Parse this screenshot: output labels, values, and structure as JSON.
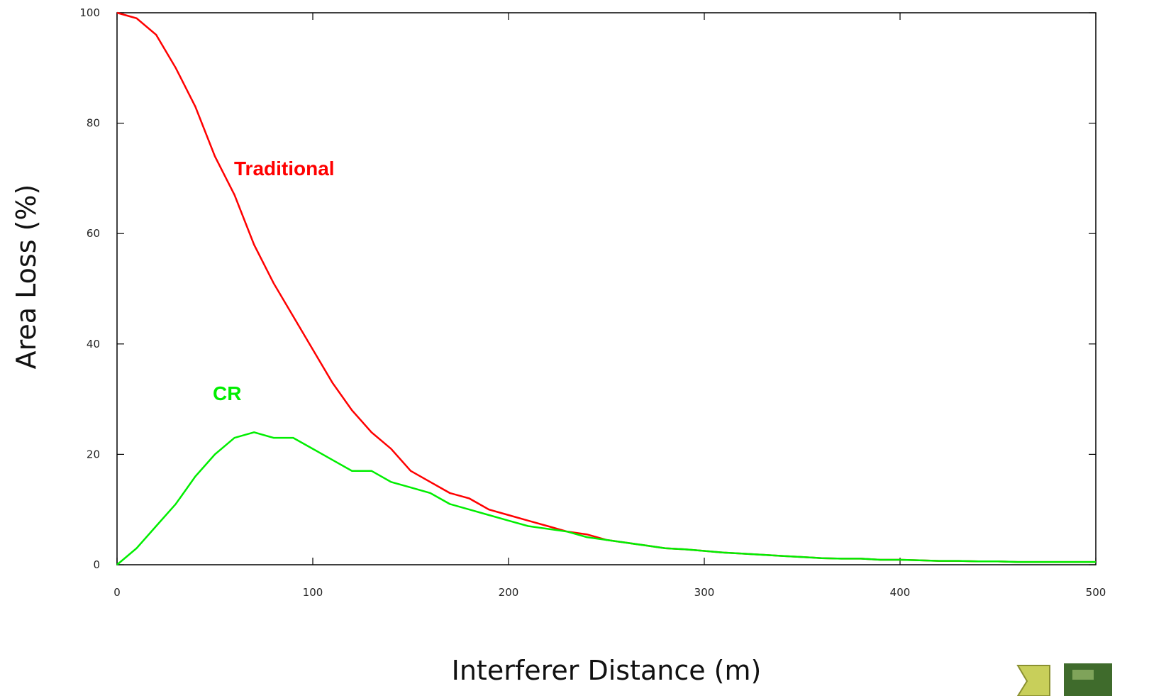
{
  "chart_data": {
    "type": "line",
    "xlabel": "Interferer Distance (m)",
    "ylabel": "Area Loss (%)",
    "xlim": [
      0,
      500
    ],
    "ylim": [
      0,
      100
    ],
    "xticks": [
      0,
      100,
      200,
      300,
      400,
      500
    ],
    "yticks": [
      0,
      20,
      40,
      60,
      80,
      100
    ],
    "x": [
      0,
      10,
      20,
      30,
      40,
      50,
      60,
      70,
      80,
      90,
      100,
      110,
      120,
      130,
      140,
      150,
      160,
      170,
      180,
      190,
      200,
      210,
      220,
      230,
      240,
      250,
      260,
      270,
      280,
      290,
      300,
      310,
      320,
      330,
      340,
      350,
      360,
      370,
      380,
      390,
      400,
      410,
      420,
      430,
      440,
      450,
      460,
      470,
      480,
      490,
      500
    ],
    "series": [
      {
        "name": "Traditional",
        "color": "#ff0000",
        "values": [
          100,
          99,
          96,
          90,
          83,
          74,
          67,
          58,
          51,
          45,
          39,
          33,
          28,
          24,
          21,
          17,
          15,
          13,
          12,
          10,
          9,
          8,
          7,
          6,
          5.5,
          4.5,
          4,
          3.5,
          3,
          2.8,
          2.5,
          2.2,
          2,
          1.8,
          1.6,
          1.4,
          1.2,
          1.1,
          1.1,
          0.9,
          0.9,
          0.8,
          0.7,
          0.7,
          0.6,
          0.6,
          0.5,
          0.5,
          0.5,
          0.5,
          0.5
        ]
      },
      {
        "name": "CR",
        "color": "#00ee00",
        "values": [
          0,
          3,
          7,
          11,
          16,
          20,
          23,
          24,
          23,
          23,
          21,
          19,
          17,
          17,
          15,
          14,
          13,
          11,
          10,
          9,
          8,
          7,
          6.5,
          6,
          5,
          4.5,
          4,
          3.5,
          3,
          2.8,
          2.5,
          2.2,
          2,
          1.8,
          1.6,
          1.4,
          1.2,
          1.1,
          1.1,
          0.9,
          0.9,
          0.8,
          0.7,
          0.7,
          0.6,
          0.6,
          0.5,
          0.5,
          0.5,
          0.5,
          0.5
        ]
      }
    ]
  }
}
